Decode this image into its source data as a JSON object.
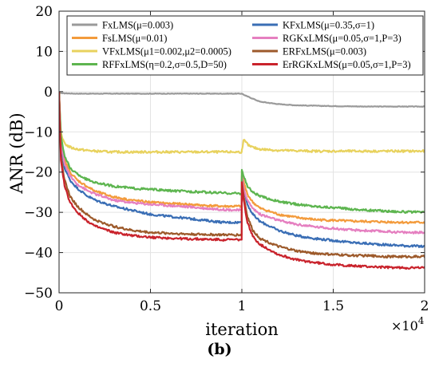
{
  "chart_data": {
    "type": "line",
    "xlabel": "iteration",
    "ylabel": "ANR (dB)",
    "x_exponent_label": "×10",
    "x_exponent_power": "4",
    "panel_label": "(b)",
    "xlim": [
      0,
      2
    ],
    "ylim": [
      -50,
      20
    ],
    "x_scale_factor": 10000,
    "xticks": [
      0,
      0.5,
      1,
      1.5,
      2
    ],
    "xtick_labels": [
      "0",
      "0.5",
      "1",
      "1.5",
      "2"
    ],
    "yticks": [
      -50,
      -40,
      -30,
      -20,
      -10,
      0,
      10,
      20
    ],
    "ytick_labels": [
      "−50",
      "−40",
      "−30",
      "−20",
      "−10",
      "0",
      "10",
      "20"
    ],
    "grid": true,
    "legend_position": "top",
    "series": [
      {
        "name": "FxLMS(μ=0.003)",
        "color": "#9a9a9a",
        "x": [
          0,
          0.02,
          0.1,
          0.3,
          0.5,
          0.7,
          0.9,
          0.999,
          1.0,
          1.02,
          1.1,
          1.2,
          1.3,
          1.5,
          1.7,
          2.0
        ],
        "y": [
          -0.3,
          -0.4,
          -0.5,
          -0.5,
          -0.5,
          -0.5,
          -0.5,
          -0.5,
          -0.5,
          -1.0,
          -2.5,
          -3.1,
          -3.4,
          -3.6,
          -3.7,
          -3.7
        ]
      },
      {
        "name": "KFxLMS(μ=0.35,σ=1)",
        "color": "#3a6eb5",
        "x": [
          0,
          0.01,
          0.03,
          0.06,
          0.1,
          0.15,
          0.2,
          0.3,
          0.4,
          0.5,
          0.6,
          0.7,
          0.8,
          0.9,
          0.999,
          1.0,
          1.01,
          1.03,
          1.06,
          1.1,
          1.2,
          1.3,
          1.4,
          1.5,
          1.6,
          1.7,
          1.8,
          1.9,
          2.0
        ],
        "y": [
          0,
          -14,
          -19,
          -22,
          -24,
          -25.8,
          -27,
          -28.5,
          -29.5,
          -30.5,
          -31,
          -31.5,
          -32,
          -32.5,
          -32.5,
          -21,
          -24,
          -28,
          -30.5,
          -32.3,
          -34.5,
          -35.8,
          -36.5,
          -37,
          -37.5,
          -37.8,
          -38.1,
          -38.3,
          -38.5
        ]
      },
      {
        "name": "FsLMS(μ=0.01)",
        "color": "#f39b3c",
        "x": [
          0,
          0.01,
          0.03,
          0.06,
          0.1,
          0.15,
          0.2,
          0.3,
          0.4,
          0.5,
          0.6,
          0.7,
          0.8,
          0.9,
          0.999,
          1.0,
          1.01,
          1.03,
          1.06,
          1.1,
          1.2,
          1.3,
          1.4,
          1.5,
          1.6,
          1.7,
          1.8,
          1.9,
          2.0
        ],
        "y": [
          0,
          -12,
          -17,
          -20,
          -22,
          -23.5,
          -24.8,
          -26.2,
          -27,
          -27.5,
          -27.8,
          -28,
          -28.3,
          -28.5,
          -28.5,
          -20,
          -22.5,
          -25.5,
          -27.5,
          -29,
          -30.5,
          -31.3,
          -31.8,
          -32,
          -32.2,
          -32.3,
          -32.4,
          -32.5,
          -32.5
        ]
      },
      {
        "name": "RGKxLMS(μ=0.05,σ=1,P=3)",
        "color": "#e57fc0",
        "x": [
          0,
          0.01,
          0.03,
          0.06,
          0.1,
          0.15,
          0.2,
          0.3,
          0.4,
          0.5,
          0.6,
          0.7,
          0.8,
          0.9,
          0.999,
          1.0,
          1.01,
          1.03,
          1.06,
          1.1,
          1.2,
          1.3,
          1.4,
          1.5,
          1.6,
          1.7,
          1.8,
          1.9,
          2.0
        ],
        "y": [
          0,
          -13,
          -18,
          -21,
          -23,
          -24.5,
          -25.5,
          -27,
          -27.6,
          -28,
          -28.3,
          -28.6,
          -29,
          -29.3,
          -29.5,
          -21,
          -24,
          -27,
          -29,
          -30.5,
          -32,
          -33,
          -33.6,
          -34,
          -34.4,
          -34.6,
          -34.8,
          -35,
          -35
        ]
      },
      {
        "name": "VFxLMS(μ1=0.002,μ2=0.0005)",
        "color": "#e8d25e",
        "x": [
          0,
          0.005,
          0.01,
          0.02,
          0.04,
          0.07,
          0.1,
          0.15,
          0.2,
          0.3,
          0.5,
          0.7,
          0.9,
          0.999,
          1.0,
          1.01,
          1.02,
          1.04,
          1.07,
          1.1,
          1.2,
          1.4,
          1.6,
          1.8,
          2.0
        ],
        "y": [
          0,
          -6,
          -10,
          -12,
          -13.3,
          -14,
          -14.3,
          -14.6,
          -14.8,
          -15,
          -15,
          -15,
          -15,
          -15,
          -14.5,
          -12,
          -12.5,
          -13.5,
          -14,
          -14.3,
          -14.6,
          -14.8,
          -14.8,
          -14.8,
          -14.8
        ]
      },
      {
        "name": "ERFxLMS(μ=0.003)",
        "color": "#9d5a2b",
        "x": [
          0,
          0.01,
          0.03,
          0.06,
          0.1,
          0.15,
          0.2,
          0.3,
          0.4,
          0.5,
          0.6,
          0.7,
          0.8,
          0.9,
          0.999,
          1.0,
          1.01,
          1.03,
          1.06,
          1.1,
          1.2,
          1.3,
          1.4,
          1.5,
          1.6,
          1.7,
          1.8,
          1.9,
          2.0
        ],
        "y": [
          0,
          -16,
          -22,
          -26,
          -28.5,
          -30.5,
          -32,
          -33.5,
          -34.5,
          -35,
          -35.2,
          -35.4,
          -35.5,
          -35.6,
          -35.6,
          -22,
          -26,
          -31,
          -34.5,
          -36.5,
          -38.5,
          -39.6,
          -40.2,
          -40.5,
          -40.7,
          -40.8,
          -41,
          -41,
          -41
        ]
      },
      {
        "name": "RFFxLMS(η=0.2,σ=0.5,D=50)",
        "color": "#5db54f",
        "x": [
          0,
          0.01,
          0.03,
          0.06,
          0.1,
          0.15,
          0.2,
          0.3,
          0.4,
          0.5,
          0.6,
          0.7,
          0.8,
          0.9,
          0.999,
          1.0,
          1.01,
          1.03,
          1.06,
          1.1,
          1.2,
          1.3,
          1.4,
          1.5,
          1.6,
          1.7,
          1.8,
          1.9,
          2.0
        ],
        "y": [
          0,
          -11,
          -16,
          -19,
          -20.5,
          -21.8,
          -22.6,
          -23.5,
          -24,
          -24.3,
          -24.6,
          -24.8,
          -25,
          -25.2,
          -25.3,
          -19.5,
          -21,
          -23.5,
          -25,
          -26,
          -27.3,
          -28,
          -28.5,
          -28.8,
          -29.2,
          -29.5,
          -29.7,
          -29.9,
          -30
        ]
      },
      {
        "name": "ErRGKxLMS(μ=0.05,σ=1,P=3)",
        "color": "#c9232c",
        "x": [
          0,
          0.01,
          0.03,
          0.06,
          0.1,
          0.15,
          0.2,
          0.3,
          0.4,
          0.5,
          0.6,
          0.7,
          0.8,
          0.9,
          0.999,
          1.0,
          1.01,
          1.03,
          1.06,
          1.1,
          1.2,
          1.3,
          1.4,
          1.5,
          1.6,
          1.7,
          1.8,
          1.9,
          2.0
        ],
        "y": [
          0,
          -17,
          -23.5,
          -27.5,
          -30,
          -32,
          -33.5,
          -35,
          -35.8,
          -36.2,
          -36.4,
          -36.6,
          -36.7,
          -36.8,
          -36.8,
          -22.5,
          -27,
          -32.5,
          -36,
          -38,
          -40.5,
          -41.8,
          -42.5,
          -43,
          -43.3,
          -43.5,
          -43.7,
          -43.8,
          -43.8
        ]
      }
    ]
  }
}
